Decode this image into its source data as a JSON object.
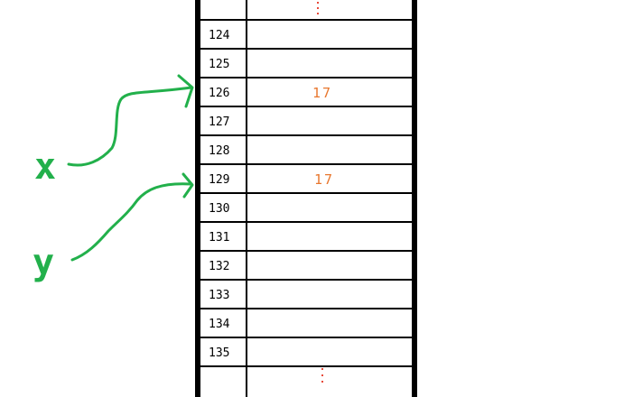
{
  "memory": {
    "rows": [
      {
        "address": "124",
        "value": ""
      },
      {
        "address": "125",
        "value": ""
      },
      {
        "address": "126",
        "value": "17"
      },
      {
        "address": "127",
        "value": ""
      },
      {
        "address": "128",
        "value": ""
      },
      {
        "address": "129",
        "value": "17"
      },
      {
        "address": "130",
        "value": ""
      },
      {
        "address": "131",
        "value": ""
      },
      {
        "address": "132",
        "value": ""
      },
      {
        "address": "133",
        "value": ""
      },
      {
        "address": "134",
        "value": ""
      },
      {
        "address": "135",
        "value": ""
      }
    ],
    "ellipsis_color": "#e84a3a"
  },
  "variables": [
    {
      "name": "x",
      "points_to": "126"
    },
    {
      "name": "y",
      "points_to": "129"
    }
  ],
  "colors": {
    "value_text": "#e8772e",
    "variable": "#22b04b",
    "border": "#000000"
  }
}
